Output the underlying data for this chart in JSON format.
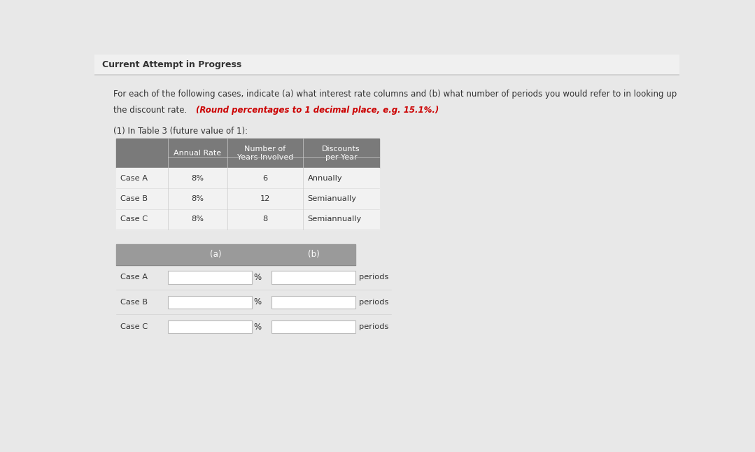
{
  "title": "Current Attempt in Progress",
  "desc_line1": "For each of the following cases, indicate (a) what interest rate columns and (b) what number of periods you would refer to in looking up",
  "desc_line2_normal": "the discount rate. ",
  "desc_line2_bold": "(Round percentages to 1 decimal place, e.g. 15.1%.)",
  "subtitle": "(1) In Table 3 (future value of 1):",
  "t1_headers": [
    "",
    "Annual Rate",
    "Number of\nYears Involved",
    "Discounts\nper Year"
  ],
  "t1_rows": [
    [
      "Case A",
      "8%",
      "6",
      "Annually"
    ],
    [
      "Case B",
      "8%",
      "12",
      "Semianually"
    ],
    [
      "Case C",
      "8%",
      "8",
      "Semiannually"
    ]
  ],
  "t2_cases": [
    "Case A",
    "Case B",
    "Case C"
  ],
  "page_bg": "#e8e8e8",
  "title_bar_bg": "#f0f0f0",
  "content_bg": "#e8e8e8",
  "t1_header_bg": "#7a7a7a",
  "t1_row_bg": "#f2f2f2",
  "t2_header_bg": "#9a9a9a",
  "input_bg": "#ffffff",
  "text_color": "#333333",
  "red_color": "#cc0000",
  "border_color": "#bbbbbb",
  "header_text_color": "#ffffff"
}
